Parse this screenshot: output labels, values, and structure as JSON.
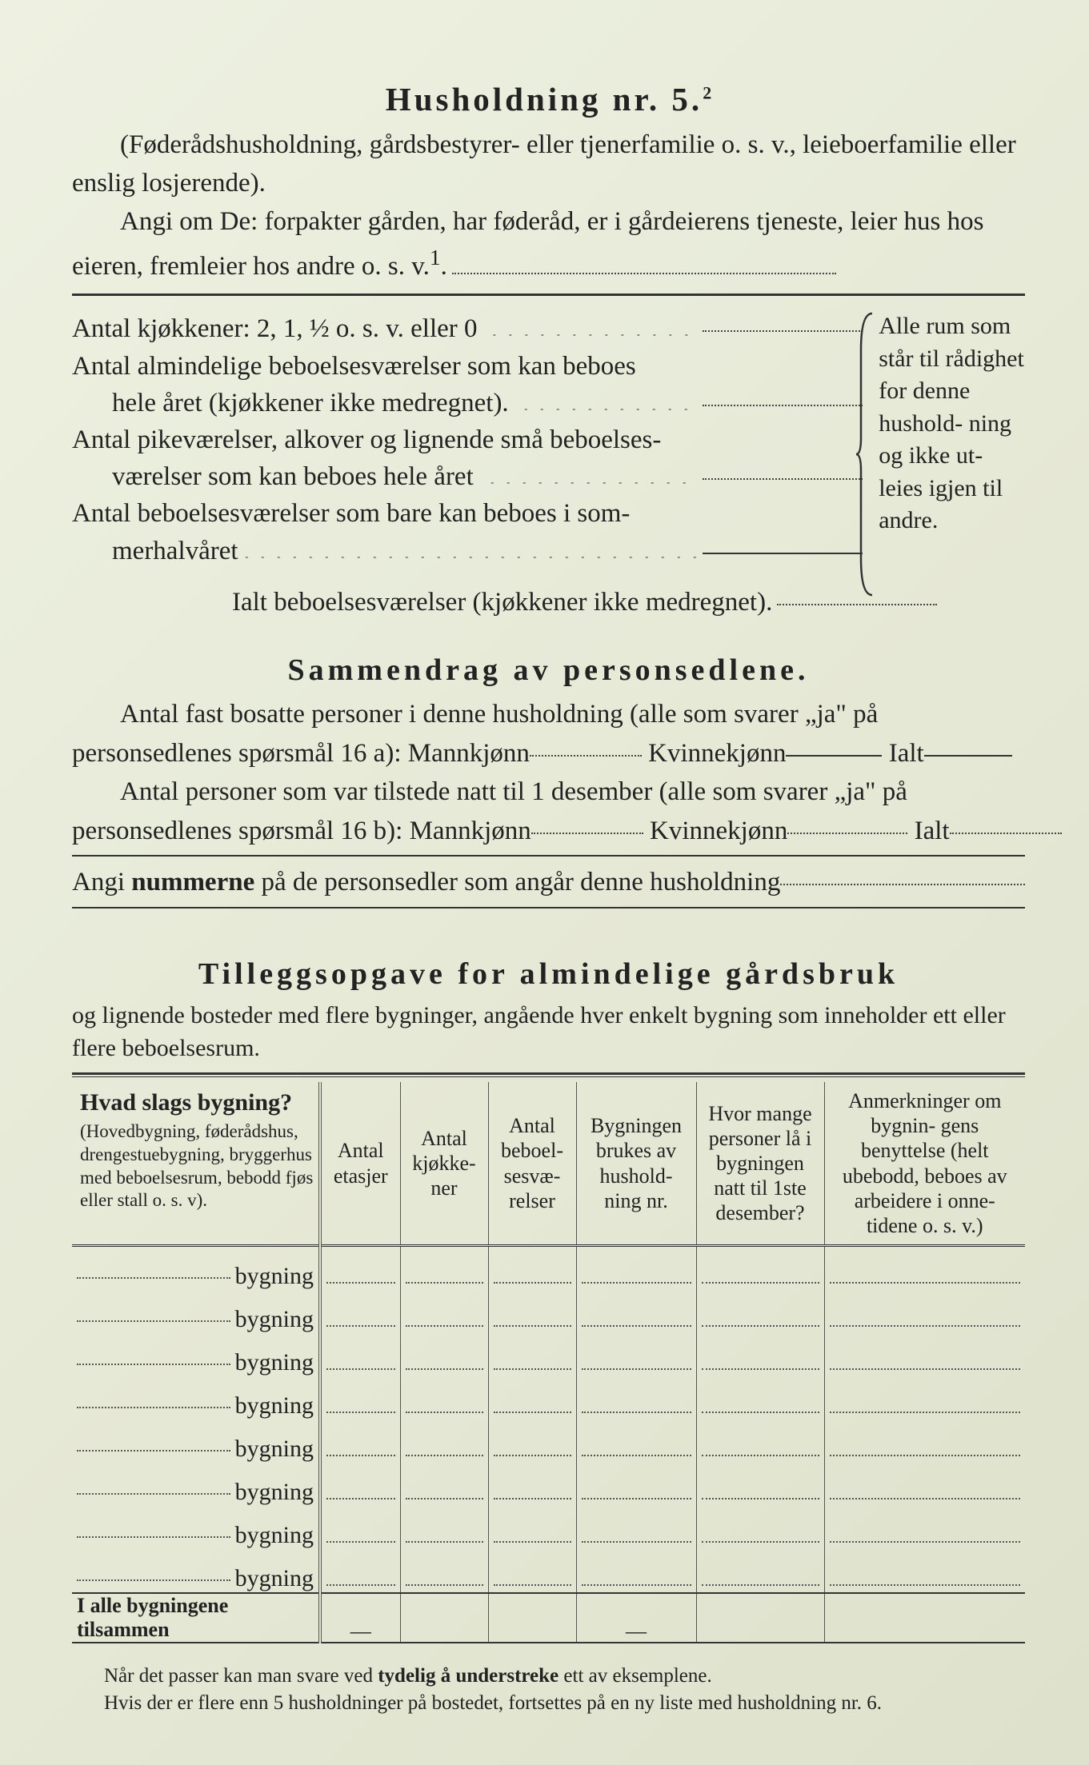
{
  "title": "Husholdning nr. 5.",
  "title_sup": "2",
  "intro_para": "(Føderådshusholdning, gårdsbestyrer- eller tjenerfamilie o. s. v., leieboerfamilie eller enslig losjerende).",
  "intro_instr": "Angi om De:  forpakter gården, har føderåd, er i gårdeierens tjeneste, leier hus hos eieren, fremleier hos andre o. s. v.",
  "intro_sup": "1",
  "rooms": {
    "r1": "Antal kjøkkener: 2, 1, ½ o. s. v. eller 0",
    "r2a": "Antal almindelige beboelsesværelser som kan beboes",
    "r2b": "hele året (kjøkkener ikke medregnet).",
    "r3a": "Antal pikeværelser, alkover og lignende små beboelses-",
    "r3b": "værelser som kan beboes hele året",
    "r4a": "Antal beboelsesværelser som bare kan beboes i som-",
    "r4b": "merhalvåret",
    "total": "Ialt beboelsesværelser  (kjøkkener ikke medregnet)."
  },
  "margin_note": "Alle rum som står til rådighet for denne hushold- ning og ikke ut- leies igjen til andre.",
  "section2_title": "Sammendrag av personsedlene.",
  "s2_l1a": "Antal fast bosatte personer i denne husholdning (alle som svarer „ja\" på",
  "s2_l1b_pre": "personsedlenes spørsmål 16 a): Mannkjønn",
  "s2_kv": " Kvinnekjønn",
  "s2_ialt": " Ialt",
  "s2_l2a": "Antal personer som var tilstede natt til 1 desember (alle som svarer „ja\" på",
  "s2_l2b_pre": "personsedlenes spørsmål 16 b): Mannkjønn",
  "s2_nummer_pre": "Angi ",
  "s2_nummer_bold": "nummerne",
  "s2_nummer_post": " på de personsedler som angår denne husholdning",
  "section3_title": "Tilleggsopgave for almindelige gårdsbruk",
  "section3_sub": "og lignende bosteder med flere bygninger, angående hver enkelt bygning som inneholder ett eller flere beboelsesrum.",
  "table": {
    "col1_head": "Hvad slags bygning?",
    "col1_sub": "(Hovedbygning, føderådshus, drengestuebygning, bryggerhus med beboelsesrum, bebodd fjøs eller stall o. s. v).",
    "col2": "Antal etasjer",
    "col3": "Antal kjøkke- ner",
    "col4": "Antal beboel- sesvæ- relser",
    "col5": "Bygningen brukes av hushold- ning nr.",
    "col6": "Hvor mange personer lå i bygningen natt til 1ste desember?",
    "col7": "Anmerkninger om bygnin- gens benyttelse (helt ubebodd, beboes av arbeidere i onne- tidene o. s. v.)",
    "row_word": "bygning",
    "sum_label": "I alle bygningene tilsammen",
    "dash": "—",
    "rows": 8
  },
  "footnote_l1_a": "Når det passer kan man svare ved ",
  "footnote_l1_b": "tydelig å understreke",
  "footnote_l1_c": " ett av eksemplene.",
  "footnote_l2": "Hvis der er flere enn 5 husholdninger på bostedet, fortsettes på en ny liste med husholdning nr. 6.",
  "style": {
    "bg": "#e6e9d6",
    "text": "#222",
    "dot": "#444",
    "rule": "#333"
  }
}
